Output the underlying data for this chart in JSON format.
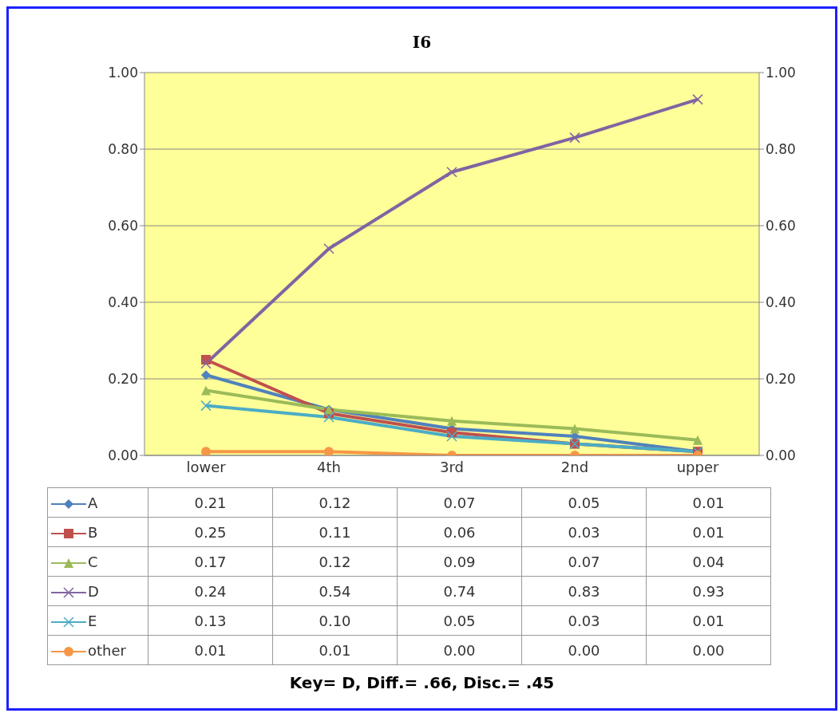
{
  "chart_data": {
    "type": "line",
    "title": "I6",
    "categories": [
      "lower",
      "4th",
      "3rd",
      "2nd",
      "upper"
    ],
    "series": [
      {
        "name": "A",
        "color": "#4f81bd",
        "marker": "diamond",
        "values": [
          0.21,
          0.12,
          0.07,
          0.05,
          0.01
        ],
        "value_labels": [
          "0.21",
          "0.12",
          "0.07",
          "0.05",
          "0.01"
        ]
      },
      {
        "name": "B",
        "color": "#c0504d",
        "marker": "square",
        "values": [
          0.25,
          0.11,
          0.06,
          0.03,
          0.01
        ],
        "value_labels": [
          "0.25",
          "0.11",
          "0.06",
          "0.03",
          "0.01"
        ]
      },
      {
        "name": "C",
        "color": "#9bbb59",
        "marker": "triangle",
        "values": [
          0.17,
          0.12,
          0.09,
          0.07,
          0.04
        ],
        "value_labels": [
          "0.17",
          "0.12",
          "0.09",
          "0.07",
          "0.04"
        ]
      },
      {
        "name": "D",
        "color": "#8064a2",
        "marker": "cross",
        "values": [
          0.24,
          0.54,
          0.74,
          0.83,
          0.93
        ],
        "value_labels": [
          "0.24",
          "0.54",
          "0.74",
          "0.83",
          "0.93"
        ]
      },
      {
        "name": "E",
        "color": "#4bacc6",
        "marker": "cross",
        "values": [
          0.13,
          0.1,
          0.05,
          0.03,
          0.01
        ],
        "value_labels": [
          "0.13",
          "0.10",
          "0.05",
          "0.03",
          "0.01"
        ]
      },
      {
        "name": "other",
        "color": "#f79646",
        "marker": "circle",
        "values": [
          0.01,
          0.01,
          0.0,
          0.0,
          0.0
        ],
        "value_labels": [
          "0.01",
          "0.01",
          "0.00",
          "0.00",
          "0.00"
        ]
      }
    ],
    "ylim": [
      0,
      1
    ],
    "yticks": [
      {
        "value": 0,
        "label": "0.00"
      },
      {
        "value": 0.2,
        "label": "0.20"
      },
      {
        "value": 0.4,
        "label": "0.40"
      },
      {
        "value": 0.6,
        "label": "0.60"
      },
      {
        "value": 0.8,
        "label": "0.80"
      },
      {
        "value": 1,
        "label": "1.00"
      }
    ],
    "y2lim": [
      0,
      1
    ],
    "y2ticks": [
      {
        "value": 0,
        "label": "0.00"
      },
      {
        "value": 0.2,
        "label": "0.20"
      },
      {
        "value": 0.4,
        "label": "0.40"
      },
      {
        "value": 0.6,
        "label": "0.60"
      },
      {
        "value": 0.8,
        "label": "0.80"
      },
      {
        "value": 1,
        "label": "1.00"
      }
    ],
    "grid": "y",
    "legend": "bottom",
    "line_style": "solid",
    "annotations": [
      "Key= D,  Diff.= .66,  Disc.= .45"
    ]
  }
}
